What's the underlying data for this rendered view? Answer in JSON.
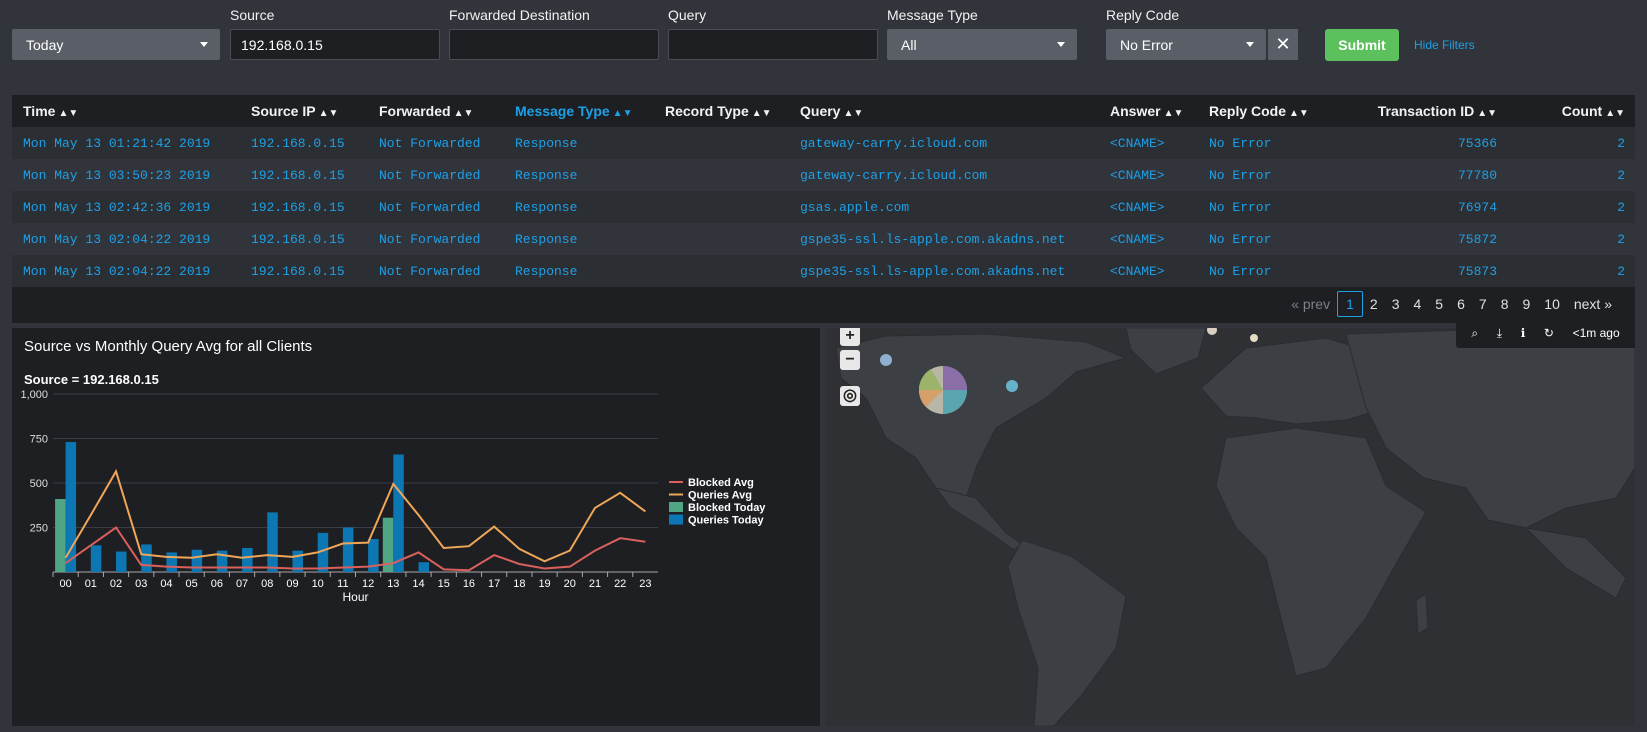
{
  "filters": {
    "time_value": "Today",
    "source_label": "Source",
    "source_value": "192.168.0.15",
    "forwarded_label": "Forwarded Destination",
    "forwarded_value": "",
    "query_label": "Query",
    "query_value": "",
    "message_type_label": "Message Type",
    "message_type_value": "All",
    "reply_code_label": "Reply Code",
    "reply_code_value": "No Error",
    "submit_label": "Submit",
    "hide_filters_label": "Hide Filters"
  },
  "table": {
    "columns": [
      "Time",
      "Source IP",
      "Forwarded",
      "Message Type",
      "Record Type",
      "Query",
      "Answer",
      "Reply Code",
      "Transaction ID",
      "Count"
    ],
    "rows": [
      [
        "Mon May 13 01:21:42 2019",
        "192.168.0.15",
        "Not Forwarded",
        "Response",
        "",
        "gateway-carry.icloud.com",
        "<CNAME>",
        "No Error",
        "75366",
        "2"
      ],
      [
        "Mon May 13 03:50:23 2019",
        "192.168.0.15",
        "Not Forwarded",
        "Response",
        "",
        "gateway-carry.icloud.com",
        "<CNAME>",
        "No Error",
        "77780",
        "2"
      ],
      [
        "Mon May 13 02:42:36 2019",
        "192.168.0.15",
        "Not Forwarded",
        "Response",
        "",
        "gsas.apple.com",
        "<CNAME>",
        "No Error",
        "76974",
        "2"
      ],
      [
        "Mon May 13 02:04:22 2019",
        "192.168.0.15",
        "Not Forwarded",
        "Response",
        "",
        "gspe35-ssl.ls-apple.com.akadns.net",
        "<CNAME>",
        "No Error",
        "75872",
        "2"
      ],
      [
        "Mon May 13 02:04:22 2019",
        "192.168.0.15",
        "Not Forwarded",
        "Response",
        "",
        "gspe35-ssl.ls-apple.com.akadns.net",
        "<CNAME>",
        "No Error",
        "75873",
        "2"
      ]
    ]
  },
  "pager": {
    "prev": "« prev",
    "pages": [
      "1",
      "2",
      "3",
      "4",
      "5",
      "6",
      "7",
      "8",
      "9",
      "10"
    ],
    "current": "1",
    "next": "next »"
  },
  "chart_panel": {
    "title": "Source vs Monthly Query Avg for all Clients",
    "subtitle": "Source = 192.168.0.15"
  },
  "chart_data": {
    "type": "bar",
    "categories": [
      "00",
      "01",
      "02",
      "03",
      "04",
      "05",
      "06",
      "07",
      "08",
      "09",
      "10",
      "11",
      "12",
      "13",
      "14",
      "15",
      "16",
      "17",
      "18",
      "19",
      "20",
      "21",
      "22",
      "23"
    ],
    "xlabel": "Hour",
    "ylabel": "",
    "ylim": [
      0,
      1000
    ],
    "yticks": [
      250,
      500,
      750,
      1000
    ],
    "ytick_labels": [
      "250",
      "500",
      "750",
      "1,000"
    ],
    "grid": true,
    "legend_position": "right",
    "series": [
      {
        "name": "Blocked Avg",
        "kind": "line",
        "color": "#d9605c",
        "values": [
          50,
          150,
          250,
          40,
          30,
          25,
          25,
          25,
          25,
          20,
          20,
          25,
          30,
          50,
          110,
          15,
          10,
          95,
          45,
          20,
          30,
          120,
          190,
          170
        ]
      },
      {
        "name": "Queries Avg",
        "kind": "line",
        "color": "#f0a658",
        "values": [
          80,
          320,
          565,
          100,
          85,
          80,
          100,
          80,
          95,
          85,
          110,
          160,
          165,
          495,
          320,
          135,
          145,
          255,
          130,
          60,
          120,
          360,
          445,
          340
        ]
      },
      {
        "name": "Blocked Today",
        "kind": "bar",
        "color": "#4fa584",
        "values": [
          410,
          0,
          0,
          0,
          0,
          0,
          0,
          0,
          0,
          0,
          0,
          0,
          0,
          305,
          0,
          0,
          0,
          0,
          0,
          0,
          0,
          0,
          0,
          0
        ]
      },
      {
        "name": "Queries Today",
        "kind": "bar",
        "color": "#0c77b3",
        "values": [
          730,
          150,
          115,
          155,
          110,
          125,
          120,
          135,
          335,
          120,
          220,
          250,
          185,
          660,
          55,
          0,
          0,
          0,
          0,
          0,
          0,
          0,
          0,
          0
        ]
      }
    ]
  },
  "map": {
    "refresh_label": "<1m ago"
  }
}
